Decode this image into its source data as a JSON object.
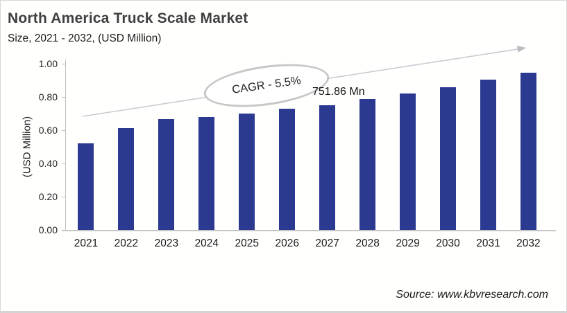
{
  "header": {
    "title": "North America Truck Scale Market",
    "subtitle": "Size, 2021 - 2032, (USD Million)"
  },
  "chart_data": {
    "type": "bar",
    "title": "North America Truck Scale Market Size, 2021 - 2032, (USD Million)",
    "categories": [
      "2021",
      "2022",
      "2023",
      "2024",
      "2025",
      "2026",
      "2027",
      "2028",
      "2029",
      "2030",
      "2031",
      "2032"
    ],
    "values": [
      0.52,
      0.613,
      0.668,
      0.68,
      0.7,
      0.729,
      0.752,
      0.788,
      0.822,
      0.86,
      0.903,
      0.945
    ],
    "xlabel": "",
    "ylabel": "(USD Million)",
    "ylim": [
      0.0,
      1.0
    ],
    "yticks": [
      "0.00",
      "0.20",
      "0.40",
      "0.60",
      "0.80",
      "1.00"
    ],
    "grid": false,
    "legend": "none",
    "bar_color": "#2b3990",
    "annotations": {
      "cagr_label": "CAGR - 5.5%",
      "value_label": {
        "text": "751.86 Mn",
        "category": "2027"
      }
    }
  },
  "footer": {
    "source": "Source: www.kbvresearch.com"
  }
}
